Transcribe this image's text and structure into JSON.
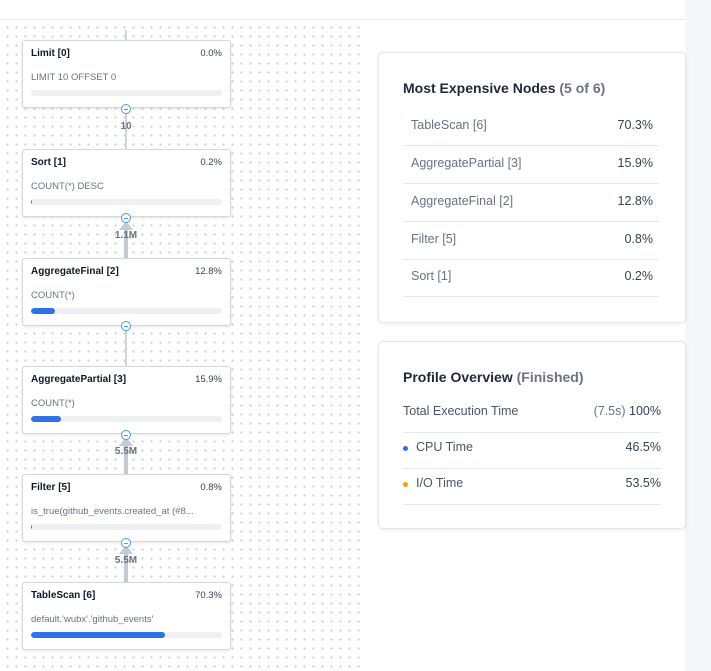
{
  "graph": {
    "nodes": [
      {
        "title": "Limit [0]",
        "pct": "0.0%",
        "desc": "LIMIT 10 OFFSET 0",
        "fill": 0.0
      },
      {
        "title": "Sort [1]",
        "pct": "0.2%",
        "desc": "COUNT(*) DESC",
        "fill": 0.002
      },
      {
        "title": "AggregateFinal [2]",
        "pct": "12.8%",
        "desc": "COUNT(*)",
        "fill": 0.128
      },
      {
        "title": "AggregatePartial [3]",
        "pct": "15.9%",
        "desc": "COUNT(*)",
        "fill": 0.159
      },
      {
        "title": "Filter [5]",
        "pct": "0.8%",
        "desc": "is_true(github_events.created_at (#8...",
        "fill": 0.008
      },
      {
        "title": "TableScan [6]",
        "pct": "70.3%",
        "desc": "default.'wubx'.'github_events'",
        "fill": 0.703
      }
    ],
    "edges": [
      "10",
      "1.1M",
      "",
      "5.5M",
      "5.5M"
    ],
    "colors": {
      "bar_fill": "#2e72e8",
      "handle": "#4a9be8"
    }
  },
  "expensive": {
    "title": "Most Expensive Nodes",
    "subtitle": "(5 of 6)",
    "rows": [
      {
        "name": "TableScan [6]",
        "pct": "70.3%"
      },
      {
        "name": "AggregatePartial [3]",
        "pct": "15.9%"
      },
      {
        "name": "AggregateFinal [2]",
        "pct": "12.8%"
      },
      {
        "name": "Filter [5]",
        "pct": "0.8%"
      },
      {
        "name": "Sort [1]",
        "pct": "0.2%"
      }
    ]
  },
  "overview": {
    "title": "Profile Overview",
    "status": "(Finished)",
    "total_label": "Total Execution Time",
    "total_time": "(7.5s)",
    "total_pct": "100%",
    "cpu_label": "CPU Time",
    "cpu_pct": "46.5%",
    "io_label": "I/O Time",
    "io_pct": "53.5%",
    "colors": {
      "cpu_dot": "#2e72e8",
      "io_dot": "#f59e0b"
    }
  }
}
